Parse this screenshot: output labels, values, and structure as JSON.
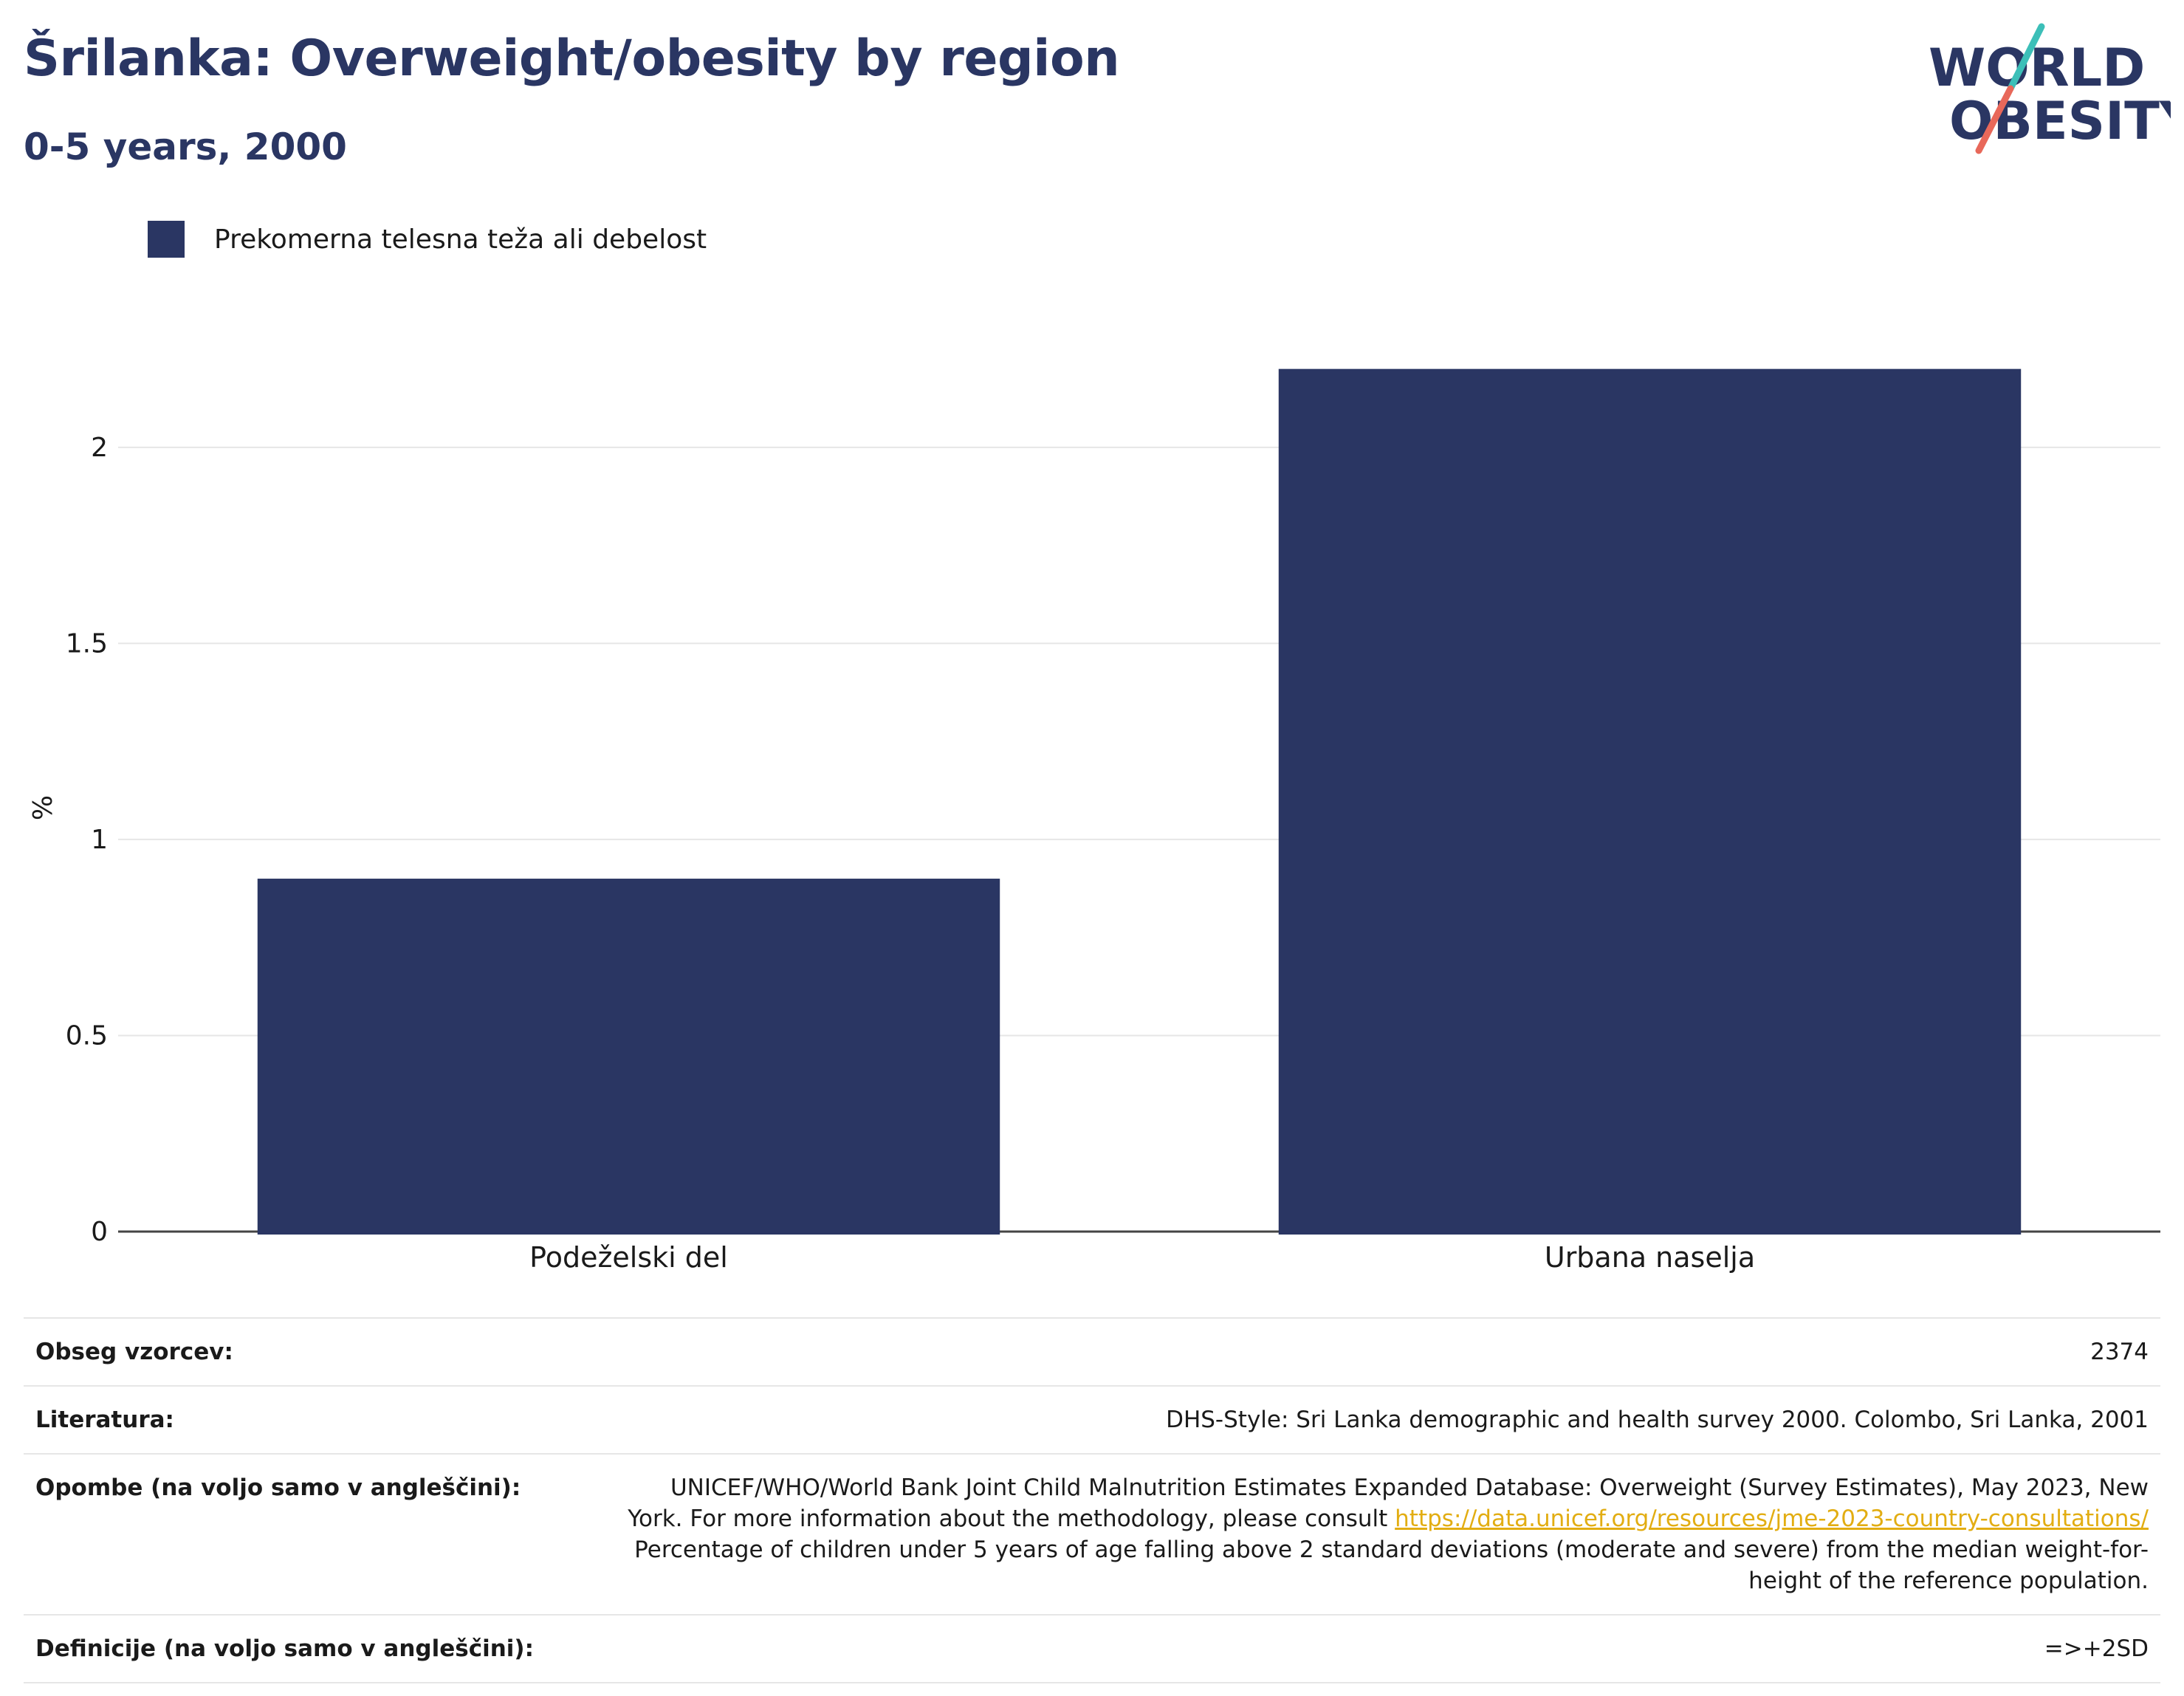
{
  "header": {
    "title": "Šrilanka: Overweight/obesity by region",
    "subtitle": "0-5 years, 2000"
  },
  "logo": {
    "line1": "WORLD",
    "line2": "OBESITY",
    "colors": {
      "navy": "#2a3663",
      "teal": "#3cbfb8",
      "coral": "#e8685a"
    }
  },
  "legend": {
    "label": "Prekomerna telesna teža ali debelost",
    "color": "#2a3663"
  },
  "chart_data": {
    "type": "bar",
    "categories": [
      "Podeželski del",
      "Urbana naselja"
    ],
    "series": [
      {
        "name": "Prekomerna telesna teža ali debelost",
        "values": [
          0.9,
          2.2
        ],
        "color": "#2a3663"
      }
    ],
    "ylabel": "%",
    "xlabel": "",
    "ylim": [
      0,
      2.35
    ],
    "yticks": [
      0,
      0.5,
      1,
      1.5,
      2
    ],
    "ytick_labels": [
      "0",
      "0.5",
      "1",
      "1.5",
      "2"
    ],
    "grid": true,
    "legend_position": "top-left"
  },
  "info": {
    "sample_size": {
      "label": "Obseg vzorcev:",
      "value": "2374"
    },
    "literature": {
      "label": "Literatura:",
      "value": "DHS-Style: Sri Lanka demographic and health survey 2000. Colombo, Sri Lanka, 2001"
    },
    "notes": {
      "label": "Opombe (na voljo samo v angleščini):",
      "text_before": "UNICEF/WHO/World Bank Joint Child Malnutrition Estimates Expanded Database: Overweight (Survey Estimates), May 2023, New York. For more information about the methodology, please consult ",
      "link": "https://data.unicef.org/resources/jme-2023-country-consultations/",
      "text_after": " Percentage of children under 5 years of age falling above 2 standard deviations (moderate and severe) from the median weight-for-height of the reference population."
    },
    "definitions": {
      "label": "Definicije (na voljo samo v angleščini):",
      "value": "=>+2SD"
    }
  }
}
